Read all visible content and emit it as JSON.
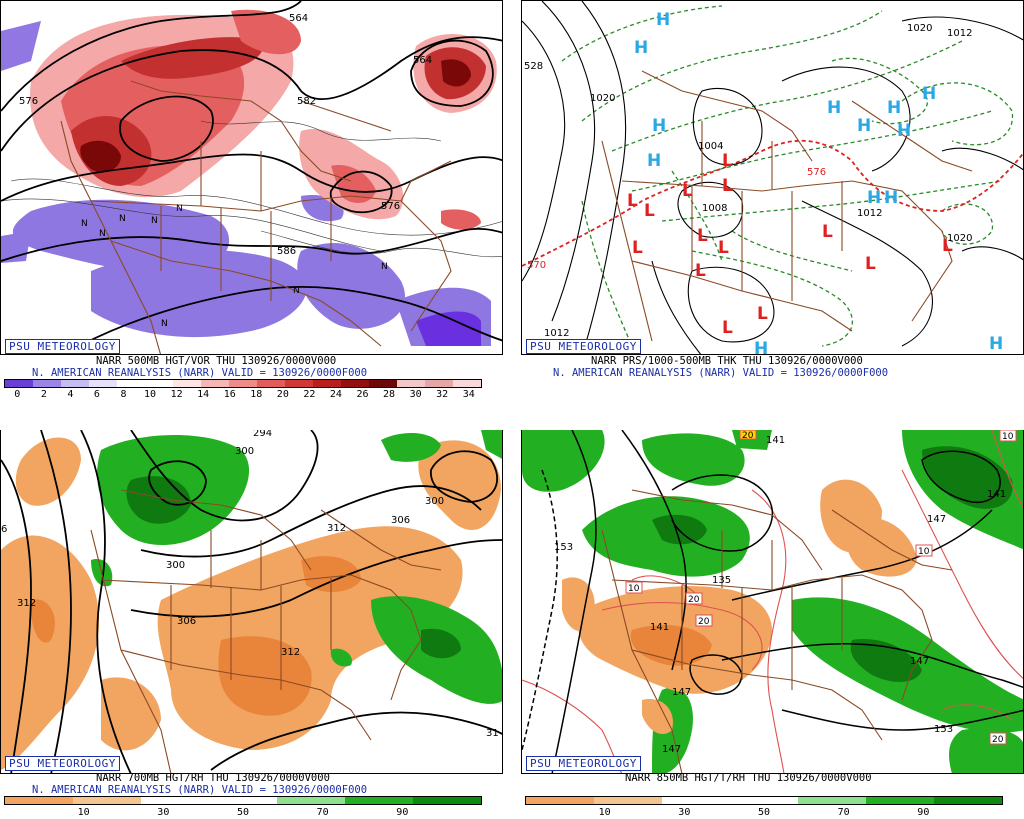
{
  "logo_text": "PSU METEOROLOGY",
  "panels": [
    {
      "id": "vor500",
      "caption_line1": "NARR 500MB HGT/VOR THU 130926/0000V000",
      "caption_line2": "N. AMERICAN REANALYSIS (NARR) VALID = 130926/0000F000",
      "scale_colors": [
        "#6a3fd6",
        "#9a85e6",
        "#c6bcf2",
        "#e6e0fa",
        "#ffffff",
        "#ffffff",
        "#ffe4e4",
        "#f6b6b6",
        "#ee8a8a",
        "#e25c5c",
        "#d03838",
        "#b81e1e",
        "#921010",
        "#6e0808",
        "#f0c8c8",
        "#e6a6a6",
        "#f8d8d8"
      ],
      "scale_labels": [
        "0",
        "2",
        "4",
        "6",
        "8",
        "10",
        "12",
        "14",
        "16",
        "18",
        "20",
        "22",
        "24",
        "26",
        "28",
        "30",
        "32",
        "34"
      ],
      "contour_labels": [
        "576",
        "582",
        "564",
        "586",
        "564",
        "576"
      ]
    },
    {
      "id": "prs",
      "caption_line1": "NARR PRS/1000-500MB THK THU 130926/0000V000",
      "caption_line2": "N. AMERICAN REANALYSIS (NARR) VALID = 130926/0000F000",
      "contour_labels": [
        "1020",
        "1012",
        "1020",
        "1012",
        "1004",
        "1008",
        "1012",
        "1020",
        "528",
        "570",
        "576"
      ],
      "high_marker": "H",
      "low_marker": "L"
    },
    {
      "id": "rh700",
      "caption_line1": "NARR 700MB HGT/RH THU 130926/0000V000",
      "caption_line2": "N. AMERICAN REANALYSIS (NARR) VALID = 130926/0000F000",
      "scale_colors": [
        "#f2a560",
        "#f6c48f",
        "#ffffff",
        "#ffffff",
        "#8fe08f",
        "#22b022",
        "#0f8a0f"
      ],
      "scale_labels": [
        "10",
        "30",
        "50",
        "70",
        "90"
      ],
      "contour_labels": [
        "300",
        "312",
        "306",
        "300",
        "306",
        "312",
        "312",
        "300",
        "294",
        "31",
        "6"
      ]
    },
    {
      "id": "rh850",
      "caption_line1": "NARR 850MB HGT/T/RH THU 130926/0000V000",
      "caption_line2": "",
      "scale_colors": [
        "#f2a560",
        "#f6c48f",
        "#ffffff",
        "#ffffff",
        "#8fe08f",
        "#22b022",
        "#0f8a0f"
      ],
      "scale_labels": [
        "10",
        "30",
        "50",
        "70",
        "90"
      ],
      "contour_labels": [
        "153",
        "135",
        "141",
        "147",
        "147",
        "141",
        "147",
        "153",
        "141",
        "147"
      ],
      "temp_labels": [
        "10",
        "20",
        "20",
        "10",
        "20",
        "10",
        "20"
      ]
    }
  ]
}
